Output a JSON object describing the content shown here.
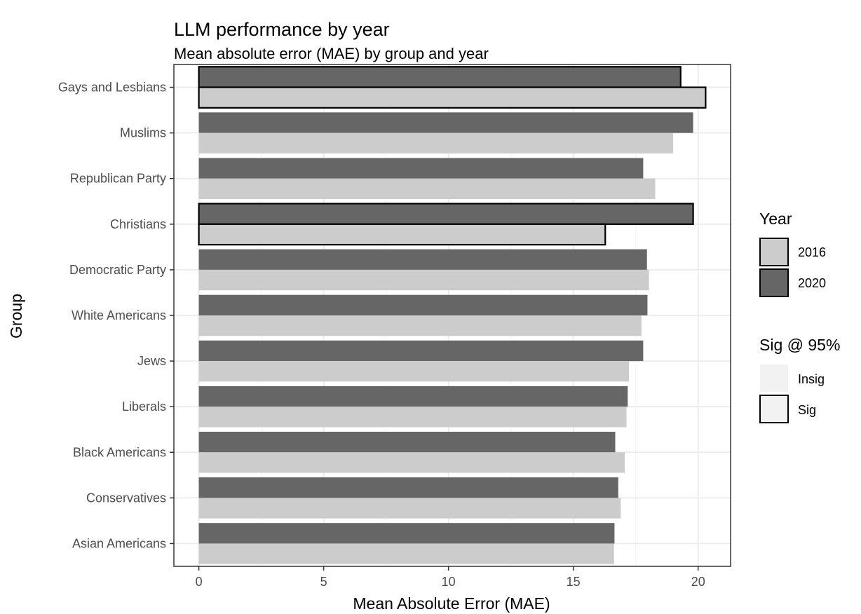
{
  "chart_data": {
    "type": "bar",
    "orientation": "horizontal",
    "title": "LLM performance by year",
    "subtitle": "Mean absolute error (MAE) by group and year",
    "xlabel": "Mean Absolute Error (MAE)",
    "ylabel": "Group",
    "xlim": [
      -1,
      21.3
    ],
    "xticks": [
      0,
      5,
      10,
      15,
      20
    ],
    "grid": true,
    "categories": [
      "Gays and Lesbians",
      "Muslims",
      "Republican Party",
      "Christians",
      "Democratic Party",
      "White Americans",
      "Jews",
      "Liberals",
      "Black Americans",
      "Conservatives",
      "Asian Americans"
    ],
    "series": [
      {
        "name": "2020",
        "color": "#666666",
        "values": [
          19.3,
          19.8,
          17.8,
          19.8,
          17.95,
          17.97,
          17.8,
          17.18,
          16.68,
          16.8,
          16.65
        ],
        "significant": [
          true,
          false,
          false,
          true,
          false,
          false,
          false,
          false,
          false,
          false,
          false
        ]
      },
      {
        "name": "2016",
        "color": "#cccccc",
        "values": [
          20.3,
          19.0,
          18.28,
          16.28,
          18.03,
          17.73,
          17.23,
          17.13,
          17.06,
          16.9,
          16.63
        ],
        "significant": [
          true,
          false,
          false,
          true,
          false,
          false,
          false,
          false,
          false,
          false,
          false
        ]
      }
    ],
    "legend": {
      "position": "right",
      "year": {
        "title": "Year",
        "items": [
          {
            "label": "2016",
            "color": "#cccccc"
          },
          {
            "label": "2020",
            "color": "#666666"
          }
        ]
      },
      "sig": {
        "title": "Sig @ 95%",
        "items": [
          {
            "label": "Insig",
            "outlined": false
          },
          {
            "label": "Sig",
            "outlined": true
          }
        ]
      }
    }
  }
}
